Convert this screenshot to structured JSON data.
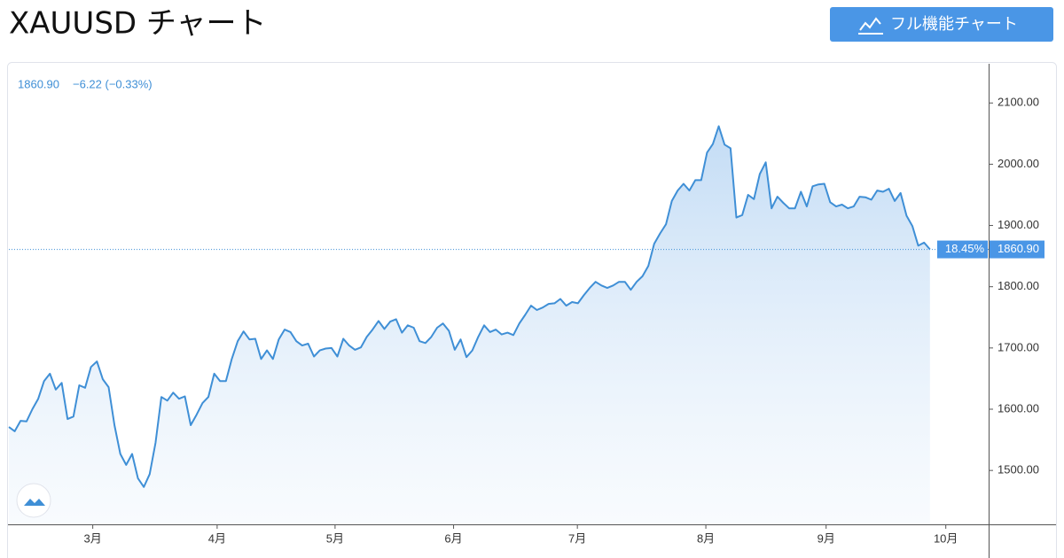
{
  "chart_data": {
    "type": "area",
    "title": "XAUUSD チャート",
    "button_label": "フル機能チャート",
    "legend_price": "1860.90",
    "legend_change": "−6.22 (−0.33%)",
    "percent_label": "18.45%",
    "price": {
      "value": 1860.9,
      "label": "1860.90"
    },
    "color": "#3f8fd6",
    "values": [
      1571,
      1564,
      1581,
      1580,
      1600,
      1617,
      1646,
      1658,
      1632,
      1643,
      1584,
      1588,
      1639,
      1635,
      1669,
      1678,
      1649,
      1636,
      1574,
      1527,
      1509,
      1527,
      1487,
      1473,
      1494,
      1545,
      1620,
      1614,
      1627,
      1617,
      1621,
      1574,
      1591,
      1610,
      1620,
      1658,
      1646,
      1646,
      1682,
      1711,
      1727,
      1714,
      1715,
      1682,
      1696,
      1682,
      1714,
      1730,
      1726,
      1711,
      1704,
      1707,
      1686,
      1696,
      1699,
      1700,
      1686,
      1715,
      1704,
      1697,
      1701,
      1718,
      1730,
      1744,
      1731,
      1743,
      1747,
      1725,
      1737,
      1733,
      1711,
      1708,
      1718,
      1733,
      1740,
      1728,
      1697,
      1714,
      1685,
      1696,
      1718,
      1737,
      1726,
      1730,
      1722,
      1725,
      1721,
      1740,
      1754,
      1769,
      1762,
      1766,
      1772,
      1773,
      1780,
      1769,
      1775,
      1773,
      1786,
      1798,
      1808,
      1802,
      1798,
      1802,
      1808,
      1808,
      1795,
      1808,
      1817,
      1834,
      1870,
      1887,
      1902,
      1940,
      1957,
      1968,
      1957,
      1974,
      1974,
      2019,
      2033,
      2062,
      2032,
      2026,
      1913,
      1917,
      1950,
      1943,
      1984,
      2003,
      1928,
      1947,
      1937,
      1928,
      1928,
      1955,
      1931,
      1964,
      1967,
      1968,
      1938,
      1931,
      1934,
      1928,
      1931,
      1947,
      1946,
      1942,
      1957,
      1955,
      1960,
      1940,
      1953,
      1916,
      1899,
      1867,
      1872,
      1861
    ],
    "xlim": [
      0,
      167
    ],
    "xticks": [
      {
        "value": 14.3,
        "label": "3月"
      },
      {
        "value": 35.5,
        "label": "4月"
      },
      {
        "value": 55.6,
        "label": "5月"
      },
      {
        "value": 75.8,
        "label": "6月"
      },
      {
        "value": 96.9,
        "label": "7月"
      },
      {
        "value": 118.8,
        "label": "8月"
      },
      {
        "value": 139.3,
        "label": "9月"
      },
      {
        "value": 159.7,
        "label": "10月"
      }
    ],
    "ylim": [
      1412,
      2164
    ],
    "yticks": [
      {
        "value": 1500,
        "label": "1500.00"
      },
      {
        "value": 1600,
        "label": "1600.00"
      },
      {
        "value": 1700,
        "label": "1700.00"
      },
      {
        "value": 1800,
        "label": "1800.00"
      },
      {
        "value": 1900,
        "label": "1900.00"
      },
      {
        "value": 2000,
        "label": "2000.00"
      },
      {
        "value": 2100,
        "label": "2100.00"
      }
    ]
  }
}
